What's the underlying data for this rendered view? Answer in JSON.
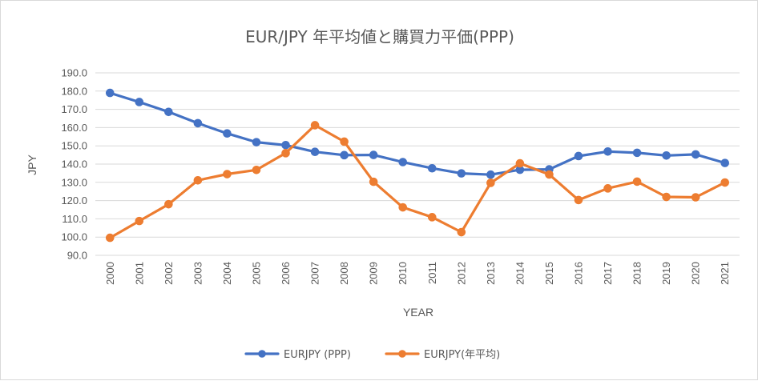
{
  "chart_data": {
    "type": "line",
    "title": "EUR/JPY 年平均値と購買力平価(PPP)",
    "xlabel": "YEAR",
    "ylabel": "JPY",
    "ylim": [
      90,
      190
    ],
    "yticks": [
      "90.0",
      "100.0",
      "110.0",
      "120.0",
      "130.0",
      "140.0",
      "150.0",
      "160.0",
      "170.0",
      "180.0",
      "190.0"
    ],
    "categories": [
      "2000",
      "2001",
      "2002",
      "2003",
      "2004",
      "2005",
      "2006",
      "2007",
      "2008",
      "2009",
      "2010",
      "2011",
      "2012",
      "2013",
      "2014",
      "2015",
      "2016",
      "2017",
      "2018",
      "2019",
      "2020",
      "2021"
    ],
    "grid": true,
    "legend_position": "bottom",
    "series": [
      {
        "name": "EURJPY (PPP)",
        "color": "#4472C4",
        "values": [
          179.0,
          174.0,
          168.6,
          162.4,
          156.8,
          152.0,
          150.4,
          146.7,
          144.9,
          145.0,
          141.1,
          137.7,
          134.9,
          134.2,
          136.9,
          137.1,
          144.4,
          146.9,
          146.2,
          144.7,
          145.3,
          140.6
        ]
      },
      {
        "name": "EURJPY(年平均)",
        "color": "#ED7D31",
        "values": [
          99.6,
          108.8,
          118.0,
          131.1,
          134.5,
          136.8,
          146.0,
          161.3,
          152.3,
          130.3,
          116.3,
          110.9,
          102.7,
          129.7,
          140.4,
          134.3,
          120.3,
          126.7,
          130.4,
          122.0,
          121.8,
          129.9
        ]
      }
    ]
  }
}
